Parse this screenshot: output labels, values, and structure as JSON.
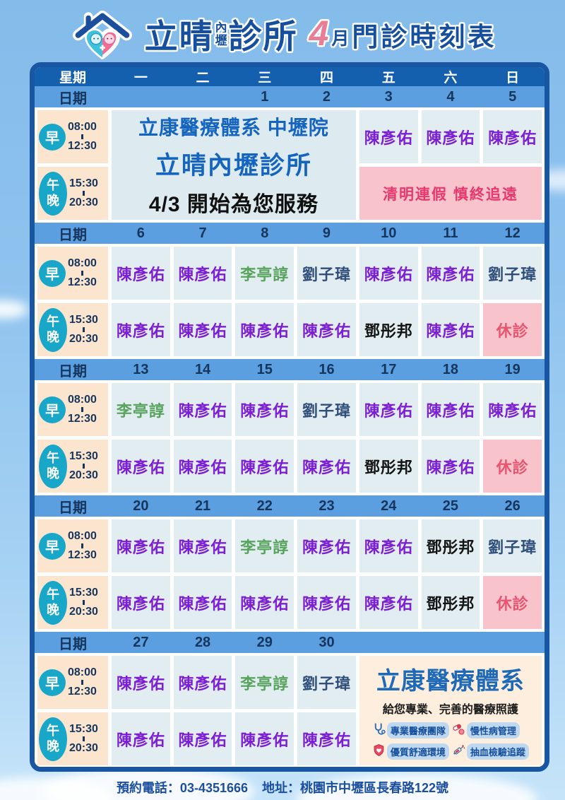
{
  "header": {
    "title_main": "立晴",
    "title_small_top": "內",
    "title_small_bottom": "壢",
    "title_suffix": "診所",
    "month_digit": "4",
    "month_char": "月",
    "title_rest": "門診時刻表"
  },
  "schedule": {
    "weekday_label": "星期",
    "date_label": "日期",
    "weekdays": [
      "一",
      "二",
      "三",
      "四",
      "五",
      "六",
      "日"
    ],
    "closed_label": "休診",
    "sessions": [
      {
        "badge": [
          "早"
        ],
        "start": "08:00",
        "end": "12:30"
      },
      {
        "badge": [
          "午",
          "晚"
        ],
        "start": "15:30",
        "end": "20:30"
      }
    ],
    "doctor_colors": {
      "陳彥佑": "#7c1fd4",
      "李亭諄": "#58a35e",
      "劉子瑋": "#2f4e7a",
      "鄧彤邦": "#141414"
    },
    "weeks": [
      {
        "dates": [
          "",
          "",
          "1",
          "2",
          "3",
          "4",
          "5"
        ],
        "notice_lines": [
          "立康醫療體系 中壢院",
          "立晴內壢診所",
          "4/3 開始為您服務"
        ],
        "holiday_text": "清明連假 慎終追遠",
        "morning": [
          null,
          null,
          null,
          null,
          "陳彥佑",
          "陳彥佑",
          "陳彥佑"
        ],
        "evening": [
          null,
          null,
          null,
          null,
          null,
          null,
          null
        ]
      },
      {
        "dates": [
          "6",
          "7",
          "8",
          "9",
          "10",
          "11",
          "12"
        ],
        "morning": [
          "陳彥佑",
          "陳彥佑",
          "李亭諄",
          "劉子瑋",
          "陳彥佑",
          "陳彥佑",
          "劉子瑋"
        ],
        "evening": [
          "陳彥佑",
          "陳彥佑",
          "陳彥佑",
          "陳彥佑",
          "鄧彤邦",
          "陳彥佑",
          "休診"
        ]
      },
      {
        "dates": [
          "13",
          "14",
          "15",
          "16",
          "17",
          "18",
          "19"
        ],
        "morning": [
          "李亭諄",
          "陳彥佑",
          "陳彥佑",
          "劉子瑋",
          "陳彥佑",
          "陳彥佑",
          "陳彥佑"
        ],
        "evening": [
          "陳彥佑",
          "陳彥佑",
          "陳彥佑",
          "陳彥佑",
          "鄧彤邦",
          "陳彥佑",
          "休診"
        ]
      },
      {
        "dates": [
          "20",
          "21",
          "22",
          "23",
          "24",
          "25",
          "26"
        ],
        "morning": [
          "陳彥佑",
          "陳彥佑",
          "李亭諄",
          "陳彥佑",
          "陳彥佑",
          "鄧彤邦",
          "劉子瑋"
        ],
        "evening": [
          "陳彥佑",
          "陳彥佑",
          "陳彥佑",
          "陳彥佑",
          "陳彥佑",
          "鄧彤邦",
          "休診"
        ]
      },
      {
        "dates": [
          "27",
          "28",
          "29",
          "30",
          "",
          "",
          ""
        ],
        "has_promo": true,
        "morning": [
          "陳彥佑",
          "陳彥佑",
          "李亭諄",
          "劉子瑋",
          null,
          null,
          null
        ],
        "evening": [
          "陳彥佑",
          "陳彥佑",
          "陳彥佑",
          "陳彥佑",
          null,
          null,
          null
        ]
      }
    ]
  },
  "promo": {
    "title": "立康醫療體系",
    "subtitle": "給您專業、完善的醫療照護",
    "features": [
      {
        "icon": "stethoscope-icon",
        "label": "專業醫療團隊"
      },
      {
        "icon": "pills-icon",
        "label": "慢性病管理"
      },
      {
        "icon": "shield-icon",
        "label": "優質舒適環境"
      },
      {
        "icon": "syringe-icon",
        "label": "抽血檢驗追蹤"
      }
    ]
  },
  "footer": {
    "phone": "預約電話：03-4351666",
    "address": "地址：桃園市中壢區長春路122號"
  },
  "colors": {
    "accent_blue": "#1565c0",
    "holiday_pink_bg": "#f9c3cb",
    "holiday_text": "#e8386e",
    "closed_text": "#e85570"
  }
}
